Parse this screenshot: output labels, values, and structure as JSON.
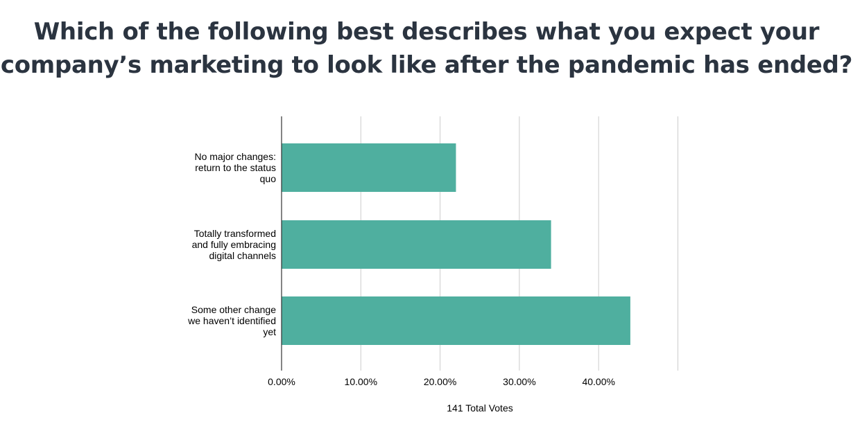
{
  "title_lines": [
    "Which of the following best describes what you expect your",
    "company’s marketing to look like after the pandemic has ended?"
  ],
  "chart_data": {
    "type": "bar",
    "orientation": "horizontal",
    "categories": [
      [
        "No major changes:",
        "return to the status",
        "quo"
      ],
      [
        "Totally transformed",
        "and fully embracing",
        "digital channels"
      ],
      [
        "Some other change",
        "we haven’t identified",
        "yet"
      ]
    ],
    "values": [
      22.0,
      34.0,
      44.0
    ],
    "xlabel": "141 Total Votes",
    "ylabel": "",
    "xlim": [
      0,
      50
    ],
    "x_ticks": [
      0,
      10,
      20,
      30,
      40
    ],
    "x_tick_labels": [
      "0.00%",
      "10.00%",
      "20.00%",
      "30.00%",
      "40.00%"
    ],
    "grid": true,
    "bar_color": "#4faf9f"
  }
}
